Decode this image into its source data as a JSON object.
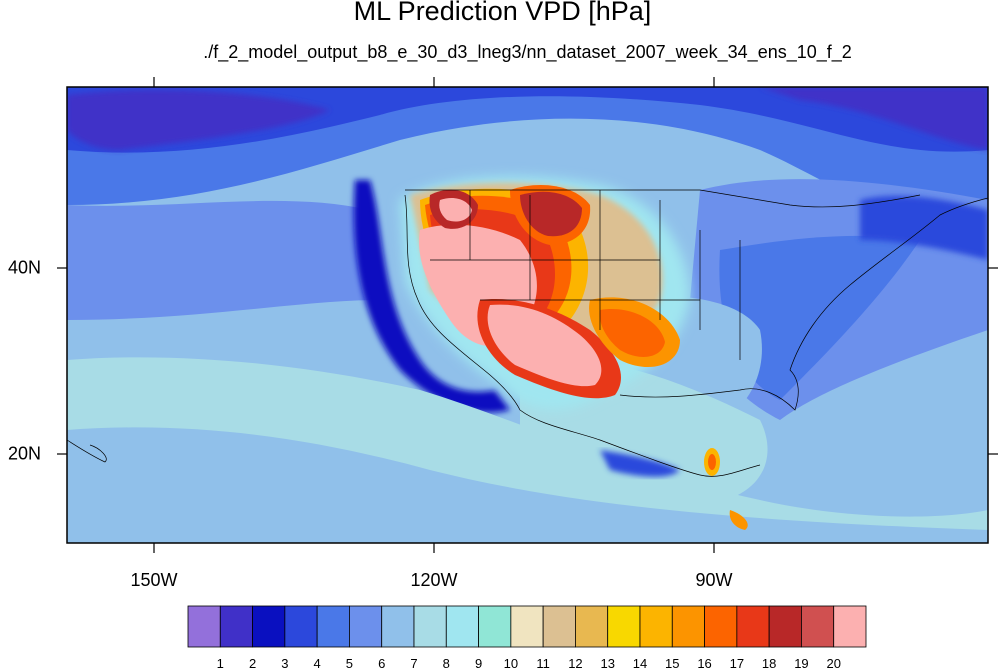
{
  "title": "ML Prediction VPD [hPa]",
  "subtitle": "./f_2_model_output_b8_e_30_d3_lneg3/nn_dataset_2007_week_34_ens_10_f_2",
  "map": {
    "type": "filled-contour map",
    "region": "North America / Eastern Pacific",
    "lon_range": [
      -160,
      -60
    ],
    "lat_range": [
      10,
      60
    ],
    "lon_labels": [
      "150W",
      "120W",
      "90W"
    ],
    "lat_labels": [
      "40N",
      "20N"
    ]
  },
  "colorbar": {
    "labels": [
      "1",
      "2",
      "3",
      "4",
      "5",
      "6",
      "7",
      "8",
      "9",
      "10",
      "11",
      "12",
      "13",
      "14",
      "15",
      "16",
      "17",
      "18",
      "19",
      "20"
    ],
    "colors": [
      "#9370db",
      "#4030c8",
      "#0a10c0",
      "#2c48dc",
      "#4a78e8",
      "#6c90ec",
      "#90c0ea",
      "#a8dce6",
      "#a0e6f0",
      "#90e6d6",
      "#f0e4c0",
      "#dcc092",
      "#e8b850",
      "#f8d800",
      "#fcb400",
      "#fc9400",
      "#fc6400",
      "#e83818",
      "#b82828",
      "#d05050",
      "#fcb0b0"
    ]
  }
}
